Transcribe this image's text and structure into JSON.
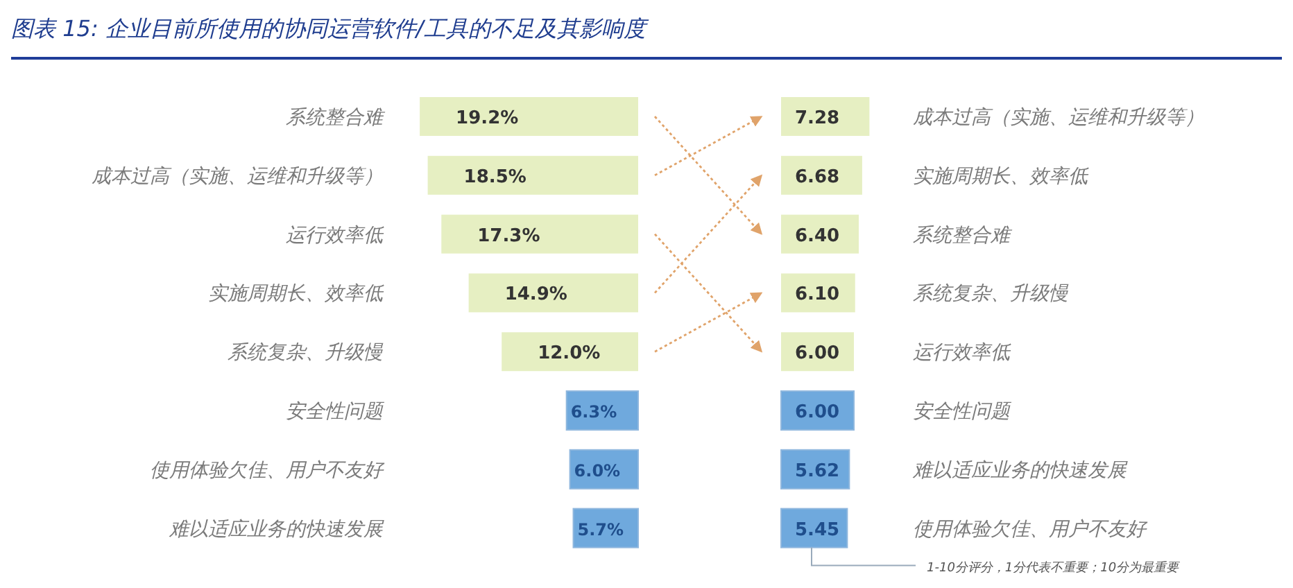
{
  "chart_data": [
    {
      "type": "bar",
      "orientation": "horizontal",
      "title": "图表 15:  企业目前所使用的协同运营软件/工具的不足及其影响度",
      "tick_labels": "y",
      "categories": [
        "系统整合难",
        "成本过高（实施、运维和升级等）",
        "运行效率低",
        "实施周期长、效率低",
        "系统复杂、升级慢",
        "安全性问题",
        "使用体验欠佳、用户不友好",
        "难以适应业务的快速发展"
      ],
      "values": [
        19.2,
        18.5,
        17.3,
        14.9,
        12.0,
        6.3,
        6.0,
        5.7
      ],
      "colors": [
        "#e6efc2",
        "#e6efc2",
        "#e6efc2",
        "#e6efc2",
        "#e6efc2",
        "#6fa9dd",
        "#6fa9dd",
        "#6fa9dd"
      ],
      "value_labels": [
        "19.2%",
        "18.5%",
        "17.3%",
        "14.9%",
        "12.0%",
        "6.3%",
        "6.0%",
        "5.7%"
      ]
    },
    {
      "type": "bar",
      "orientation": "horizontal",
      "tick_labels": "y",
      "categories": [
        "成本过高（实施、运维和升级等）",
        "实施周期长、效率低",
        "系统整合难",
        "系统复杂、升级慢",
        "运行效率低",
        "安全性问题",
        "难以适应业务的快速发展",
        "使用体验欠佳、用户不友好"
      ],
      "values": [
        7.28,
        6.68,
        6.4,
        6.1,
        6.0,
        6.0,
        5.62,
        5.45
      ],
      "colors": [
        "#e6efc2",
        "#e6efc2",
        "#e6efc2",
        "#e6efc2",
        "#e6efc2",
        "#6fa9dd",
        "#6fa9dd",
        "#6fa9dd"
      ],
      "value_labels": [
        "7.28",
        "6.68",
        "6.40",
        "6.10",
        "6.00",
        "6.00",
        "5.62",
        "5.45"
      ],
      "annotations": [
        "1-10分评分，1分代表不重要；10分为最重要"
      ]
    }
  ]
}
